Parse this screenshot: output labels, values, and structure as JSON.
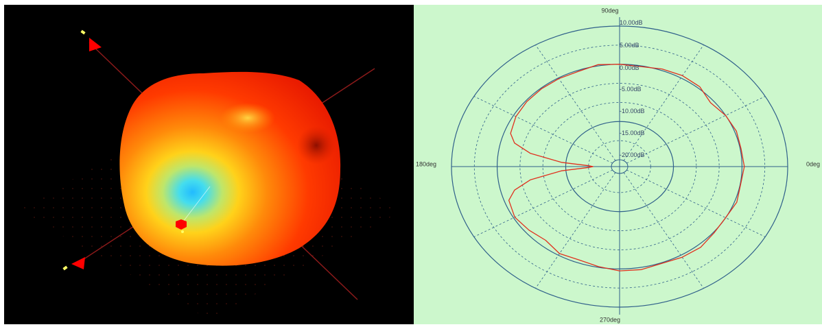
{
  "chart_data": [
    {
      "type": "surface3d",
      "colors": {
        "background": "#000000",
        "high_gain": "#ff1a00",
        "mid_gain": "#ffcc00",
        "low_gain": "#22bbff",
        "axis": "#8b1a1a",
        "marker": "#ff0000"
      }
    },
    {
      "type": "polar",
      "angle_labels": [
        "0deg",
        "90deg",
        "180deg",
        "270deg"
      ],
      "ring_labels": [
        "10.00dB",
        "5.00dB",
        "0.00dB",
        "-5.00dB",
        "-10.00dB",
        "-15.00dB",
        "-20.00dB"
      ],
      "r_range_db": [
        -25,
        10
      ],
      "grid": true,
      "colors": {
        "background": "#ccf7cc",
        "grid": "#2f5f8a",
        "trace": "#e0301e"
      },
      "series": [
        {
          "angles_deg": [
            0,
            10,
            20,
            30,
            40,
            50,
            60,
            70,
            80,
            90,
            100,
            110,
            120,
            130,
            140,
            150,
            160,
            165,
            170,
            175,
            178,
            180,
            182,
            185,
            190,
            195,
            200,
            210,
            220,
            230,
            240,
            250,
            260,
            270,
            280,
            290,
            300,
            310,
            320,
            330,
            340,
            350
          ],
          "values_db": [
            0.5,
            0.2,
            0.4,
            0.0,
            -0.8,
            0.5,
            0.7,
            0.4,
            -0.2,
            0.0,
            0.3,
            -0.3,
            -0.2,
            -0.2,
            -0.3,
            -0.6,
            -1.4,
            -3.0,
            -7.0,
            -14.0,
            -20.0,
            -21.0,
            -20.0,
            -14.0,
            -7.0,
            -3.0,
            -1.0,
            -0.3,
            -0.9,
            -1.6,
            -0.5,
            -0.8,
            -0.2,
            0.5,
            0.6,
            0.2,
            0.6,
            0.8,
            0.2,
            0.0,
            0.5,
            0.1
          ]
        }
      ]
    }
  ]
}
